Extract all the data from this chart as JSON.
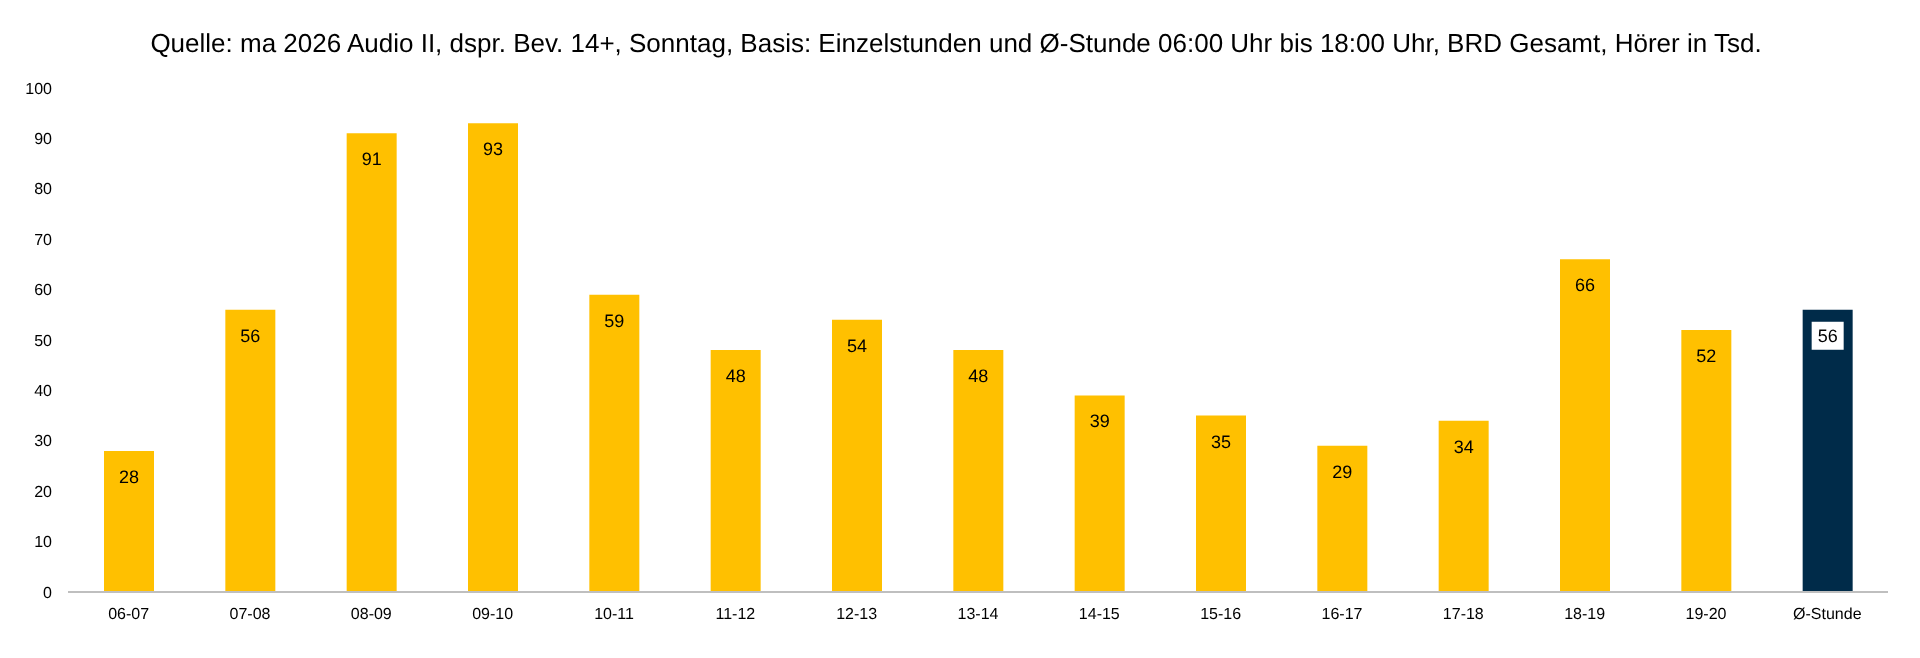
{
  "chart_data": {
    "type": "bar",
    "title": "Quelle: ma 2026 Audio II, dspr. Bev. 14+, Sonntag, Basis: Einzelstunden und Ø-Stunde 06:00 Uhr bis 18:00 Uhr, BRD Gesamt, Hörer in Tsd.",
    "categories": [
      "06-07",
      "07-08",
      "08-09",
      "09-10",
      "10-11",
      "11-12",
      "12-13",
      "13-14",
      "14-15",
      "15-16",
      "16-17",
      "17-18",
      "18-19",
      "19-20",
      "Ø-Stunde"
    ],
    "values": [
      28,
      56,
      91,
      93,
      59,
      48,
      54,
      48,
      39,
      35,
      29,
      34,
      66,
      52,
      56
    ],
    "colors": [
      "#ffc000",
      "#ffc000",
      "#ffc000",
      "#ffc000",
      "#ffc000",
      "#ffc000",
      "#ffc000",
      "#ffc000",
      "#ffc000",
      "#ffc000",
      "#ffc000",
      "#ffc000",
      "#ffc000",
      "#ffc000",
      "#002b49"
    ],
    "ylim": [
      0,
      100
    ],
    "yticks": [
      0,
      10,
      20,
      30,
      40,
      50,
      60,
      70,
      80,
      90,
      100
    ],
    "grid": false,
    "data_labels": true
  }
}
